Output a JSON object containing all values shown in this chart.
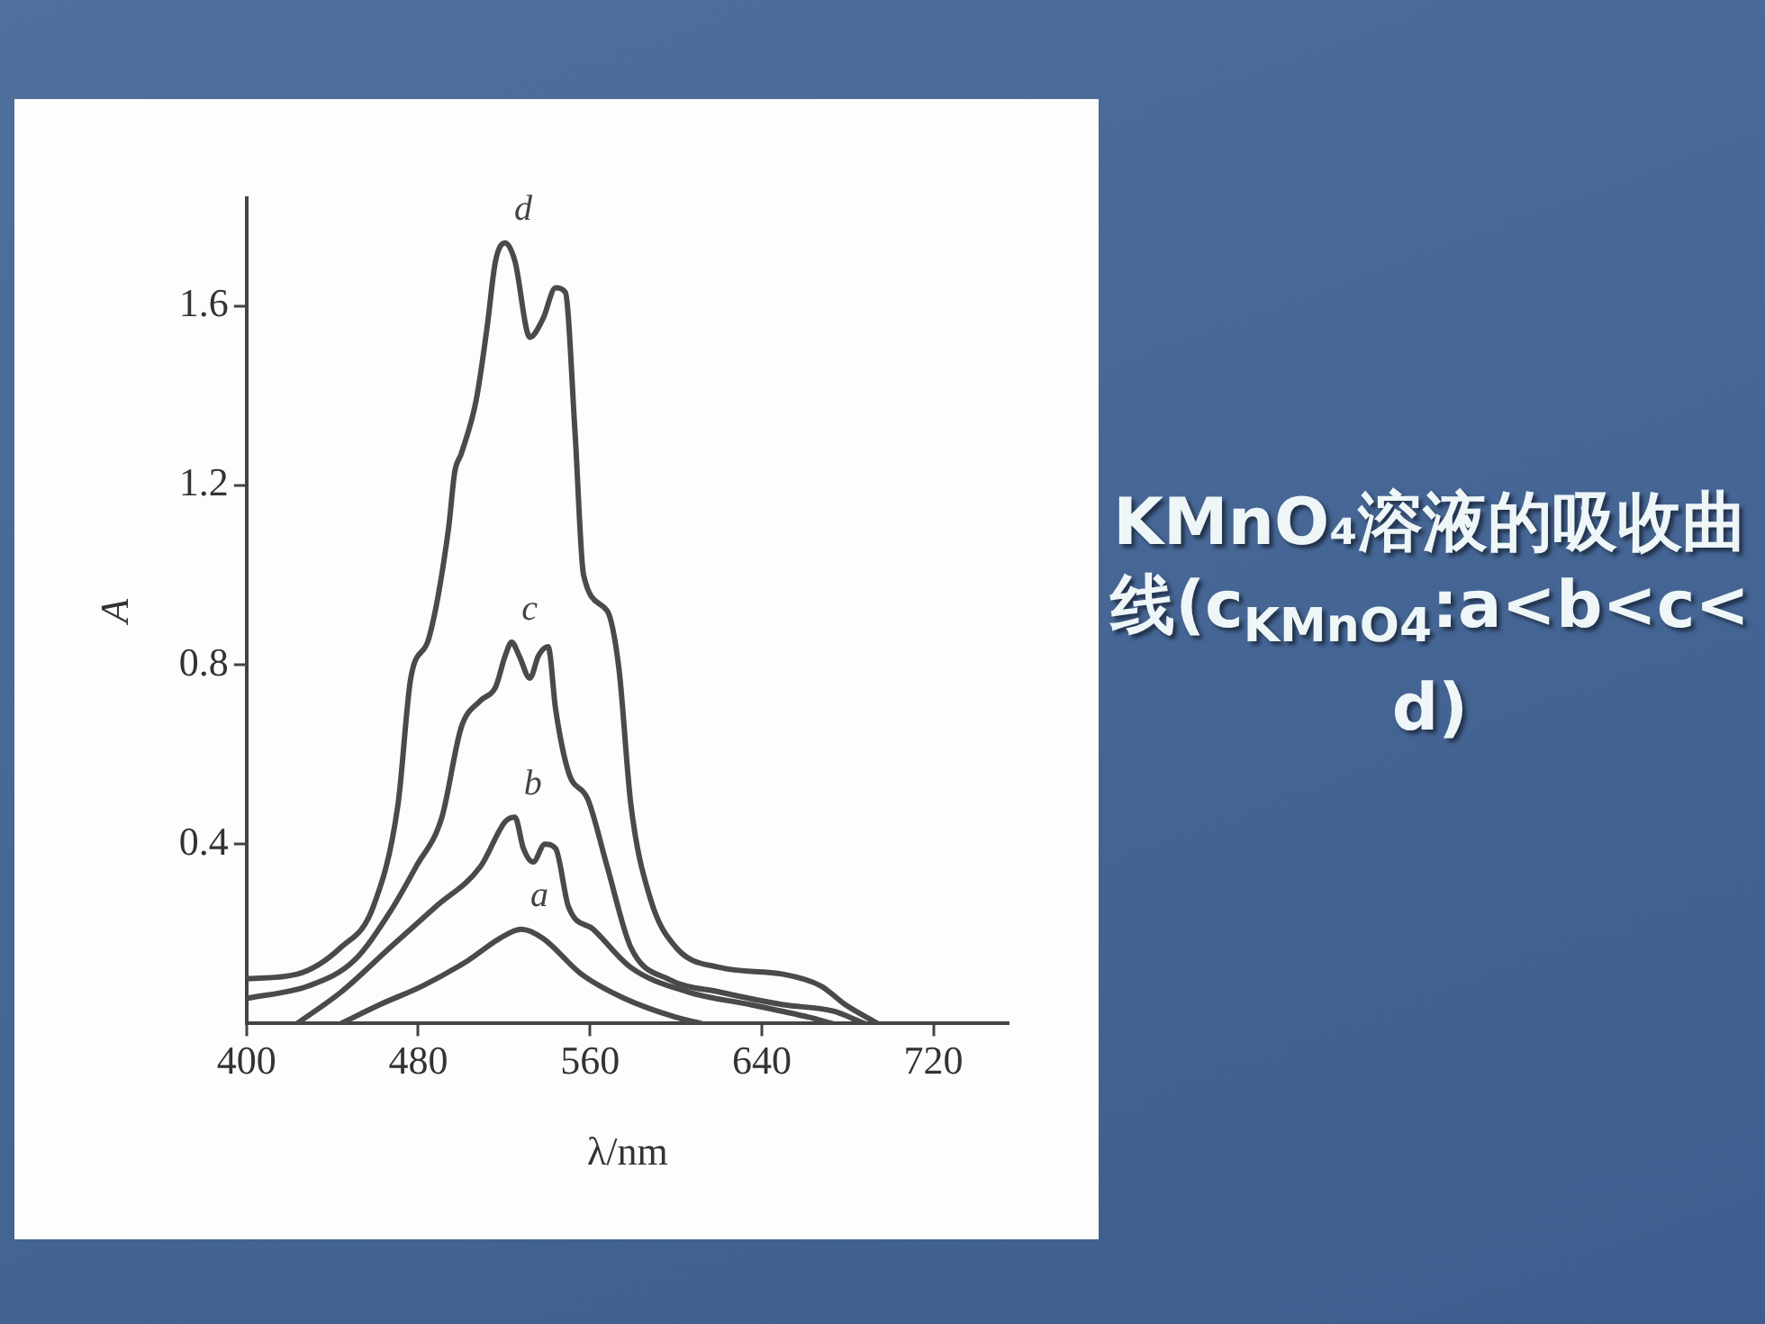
{
  "chart_data": {
    "type": "line",
    "title": "KMnO₄溶液的吸收曲线(c$_{KMnO4}$:a<b<c<d)",
    "xlabel": "λ/nm",
    "ylabel": "A",
    "xlim": [
      400,
      755
    ],
    "ylim": [
      0,
      1.84
    ],
    "xticks": [
      400,
      480,
      560,
      640,
      720
    ],
    "yticks": [
      0.4,
      0.8,
      1.2,
      1.6
    ],
    "grid": false,
    "legend": false,
    "marker": "none",
    "line_style": "solid",
    "series": [
      {
        "name": "a",
        "color": "#4a4a4a",
        "x": [
          444,
          462,
          482,
          503,
          518,
          528,
          538,
          556,
          576,
          600,
          612
        ],
        "values": [
          0,
          0.042,
          0.084,
          0.14,
          0.19,
          0.21,
          0.19,
          0.11,
          0.056,
          0.014,
          0
        ]
      },
      {
        "name": "b",
        "color": "#4a4a4a",
        "x": [
          423.5,
          444,
          467,
          488,
          509,
          520.5,
          525,
          529,
          533.5,
          539,
          544,
          550,
          561.5,
          579,
          606,
          635,
          662,
          673
        ],
        "values": [
          0,
          0.07,
          0.17,
          0.26,
          0.35,
          0.45,
          0.46,
          0.39,
          0.36,
          0.4,
          0.39,
          0.26,
          0.21,
          0.125,
          0.07,
          0.042,
          0.014,
          0
        ]
      },
      {
        "name": "c",
        "color": "#4a4a4a",
        "x": [
          400,
          429,
          450,
          467,
          479,
          491,
          500,
          509,
          516,
          520.5,
          523.5,
          527,
          532,
          536,
          540.5,
          544,
          550,
          559,
          568,
          579,
          597,
          620.5,
          650,
          673,
          688
        ],
        "values": [
          0.056,
          0.084,
          0.14,
          0.25,
          0.35,
          0.46,
          0.66,
          0.72,
          0.75,
          0.82,
          0.85,
          0.82,
          0.77,
          0.82,
          0.84,
          0.7,
          0.56,
          0.5,
          0.35,
          0.17,
          0.098,
          0.07,
          0.042,
          0.028,
          0
        ]
      },
      {
        "name": "d",
        "color": "#4a4a4a",
        "x": [
          400,
          423.5,
          444,
          459,
          470.6,
          476.5,
          485,
          494,
          497,
          500,
          507,
          512,
          516,
          520.5,
          525,
          532,
          538,
          544,
          548.5,
          553,
          557,
          568,
          573.5,
          579,
          588,
          600,
          620.5,
          650,
          667.5,
          679,
          694
        ],
        "values": [
          0.1,
          0.11,
          0.17,
          0.26,
          0.49,
          0.77,
          0.86,
          1.1,
          1.23,
          1.27,
          1.39,
          1.55,
          1.7,
          1.74,
          1.7,
          1.53,
          1.57,
          1.64,
          1.63,
          1.32,
          1,
          0.92,
          0.79,
          0.49,
          0.28,
          0.17,
          0.125,
          0.11,
          0.084,
          0.042,
          0
        ]
      }
    ]
  }
}
